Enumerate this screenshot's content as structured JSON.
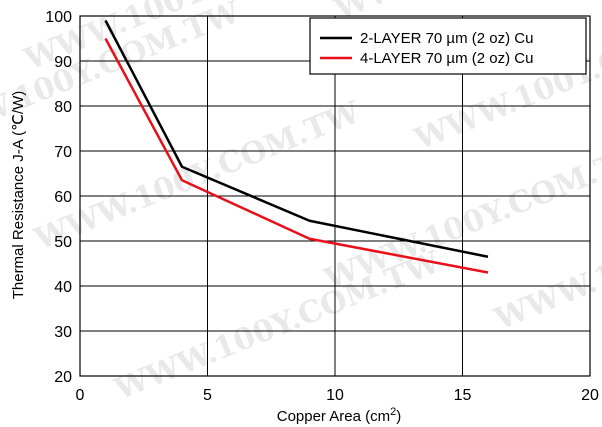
{
  "watermark": "WWW.100Y.COM.TW",
  "chart_data": {
    "type": "line",
    "title": "",
    "xlabel": "Copper Area (cm",
    "xlabel_sup": "2",
    "xlabel_suffix": ")",
    "ylabel": "Thermal Resistance J-A (℃/W)",
    "xlim": [
      0,
      20
    ],
    "ylim": [
      20,
      100
    ],
    "xticks": [
      0,
      5,
      10,
      15,
      20
    ],
    "yticks": [
      20,
      30,
      40,
      50,
      60,
      70,
      80,
      90,
      100
    ],
    "grid": true,
    "legend_position": "top-right",
    "series": [
      {
        "name": "2-LAYER 70 µm (2 oz) Cu",
        "color": "#000000",
        "x": [
          1,
          4,
          9,
          16
        ],
        "y": [
          99,
          66.5,
          54.5,
          46.5
        ]
      },
      {
        "name": "4-LAYER 70 µm (2 oz) Cu",
        "color": "#e8101a",
        "x": [
          1,
          4,
          9,
          16
        ],
        "y": [
          95,
          63.5,
          50.5,
          43
        ]
      }
    ]
  }
}
